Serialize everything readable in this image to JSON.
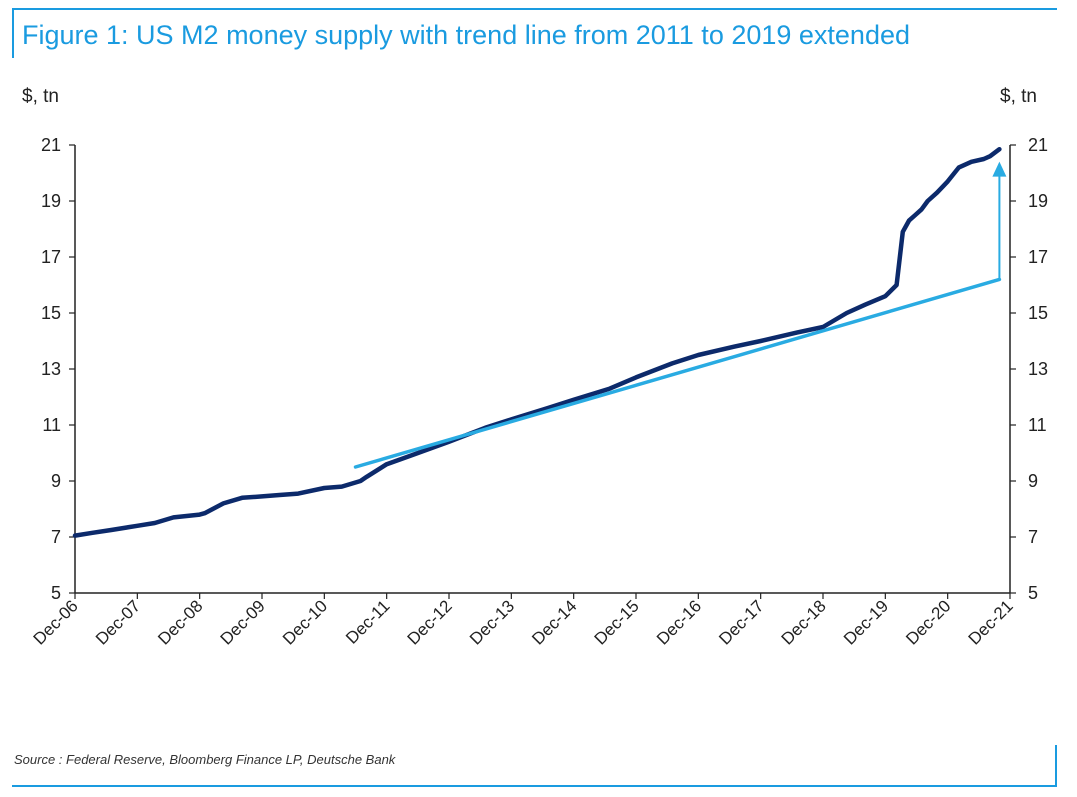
{
  "title": "Figure 1: US M2 money supply with trend line from 2011 to 2019 extended",
  "source": "Source : Federal Reserve, Bloomberg Finance LP, Deutsche Bank",
  "colors": {
    "accent": "#1a9be0",
    "m2_series": "#0c2a6b",
    "trend_series": "#29abe2",
    "axis": "#222222"
  },
  "chart_data": {
    "type": "line",
    "title": "Figure 1: US M2 money supply with trend line from 2011 to 2019 extended",
    "ylabel_left": "$, tn",
    "ylabel_right": "$, tn",
    "xlim": [
      2006.92,
      2021.92
    ],
    "ylim": [
      5,
      21
    ],
    "y_ticks": [
      5,
      7,
      9,
      11,
      13,
      15,
      17,
      19,
      21
    ],
    "x_ticks": [
      {
        "label": "Dec-06",
        "x": 2006.92
      },
      {
        "label": "Dec-07",
        "x": 2007.92
      },
      {
        "label": "Dec-08",
        "x": 2008.92
      },
      {
        "label": "Dec-09",
        "x": 2009.92
      },
      {
        "label": "Dec-10",
        "x": 2010.92
      },
      {
        "label": "Dec-11",
        "x": 2011.92
      },
      {
        "label": "Dec-12",
        "x": 2012.92
      },
      {
        "label": "Dec-13",
        "x": 2013.92
      },
      {
        "label": "Dec-14",
        "x": 2014.92
      },
      {
        "label": "Dec-15",
        "x": 2015.92
      },
      {
        "label": "Dec-16",
        "x": 2016.92
      },
      {
        "label": "Dec-17",
        "x": 2017.92
      },
      {
        "label": "Dec-18",
        "x": 2018.92
      },
      {
        "label": "Dec-19",
        "x": 2019.92
      },
      {
        "label": "Dec-20",
        "x": 2020.92
      },
      {
        "label": "Dec-21",
        "x": 2021.92
      }
    ],
    "series": [
      {
        "name": "US M2",
        "x": [
          2006.92,
          2007.2,
          2007.5,
          2007.92,
          2008.2,
          2008.5,
          2008.92,
          2009.0,
          2009.3,
          2009.6,
          2009.92,
          2010.2,
          2010.5,
          2010.92,
          2011.2,
          2011.5,
          2011.6,
          2011.92,
          2012.3,
          2012.92,
          2013.5,
          2013.92,
          2014.5,
          2014.92,
          2015.5,
          2015.92,
          2016.5,
          2016.92,
          2017.5,
          2017.92,
          2018.5,
          2018.92,
          2019.3,
          2019.6,
          2019.92,
          2020.1,
          2020.2,
          2020.3,
          2020.4,
          2020.5,
          2020.6,
          2020.75,
          2020.92,
          2021.1,
          2021.3,
          2021.5,
          2021.6,
          2021.75
        ],
        "y": [
          7.05,
          7.15,
          7.25,
          7.4,
          7.5,
          7.7,
          7.8,
          7.85,
          8.2,
          8.4,
          8.45,
          8.5,
          8.55,
          8.75,
          8.8,
          9.0,
          9.15,
          9.6,
          9.9,
          10.4,
          10.9,
          11.2,
          11.6,
          11.9,
          12.3,
          12.7,
          13.2,
          13.5,
          13.8,
          14.0,
          14.3,
          14.5,
          15.0,
          15.3,
          15.6,
          16.0,
          17.9,
          18.3,
          18.5,
          18.7,
          19.0,
          19.3,
          19.7,
          20.2,
          20.4,
          20.5,
          20.6,
          20.85
        ]
      },
      {
        "name": "Trend line 2011-2019 extended",
        "x": [
          2011.42,
          2021.75
        ],
        "y": [
          9.5,
          16.2
        ]
      }
    ],
    "annotation": {
      "type": "arrow",
      "x": 2021.75,
      "from_y": 16.2,
      "to_y": 20.3
    }
  }
}
